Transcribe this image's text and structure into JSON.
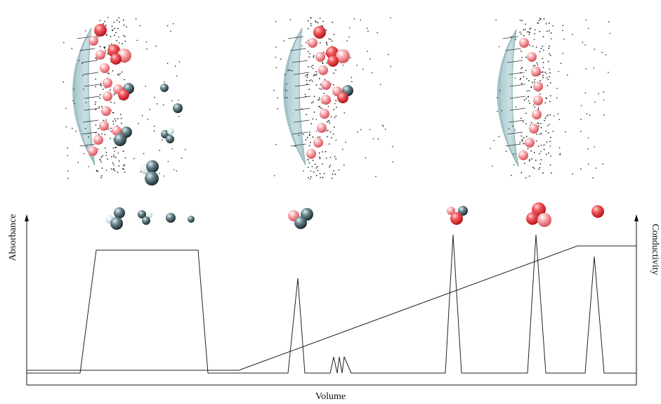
{
  "labels": {
    "x_axis": "Volume",
    "y_axis_left": "Absorbance",
    "y_axis_right": "Conductivity"
  },
  "colors": {
    "bead": "#b9d6da",
    "bead_edge": "#8fb3b8",
    "bound_protein": "#f08a92",
    "bound_protein_strong": "#e03b42",
    "unbound_protein": "#3e5960",
    "counter_ion": "#222222",
    "trace": "#222222"
  },
  "panels": [
    {
      "stage": "sample-loading",
      "bound": "mixed",
      "free": "dark-proteins-present"
    },
    {
      "stage": "wash",
      "bound": "mixed",
      "free": "none"
    },
    {
      "stage": "elution",
      "bound": "pink-only",
      "free": "none"
    }
  ],
  "elution_icons": [
    "unbound-cluster",
    "unbound-pair",
    "unbound-single",
    "unbound-small",
    "mixed-cluster",
    "mixed-red-cluster",
    "red-cluster",
    "red-single"
  ]
}
